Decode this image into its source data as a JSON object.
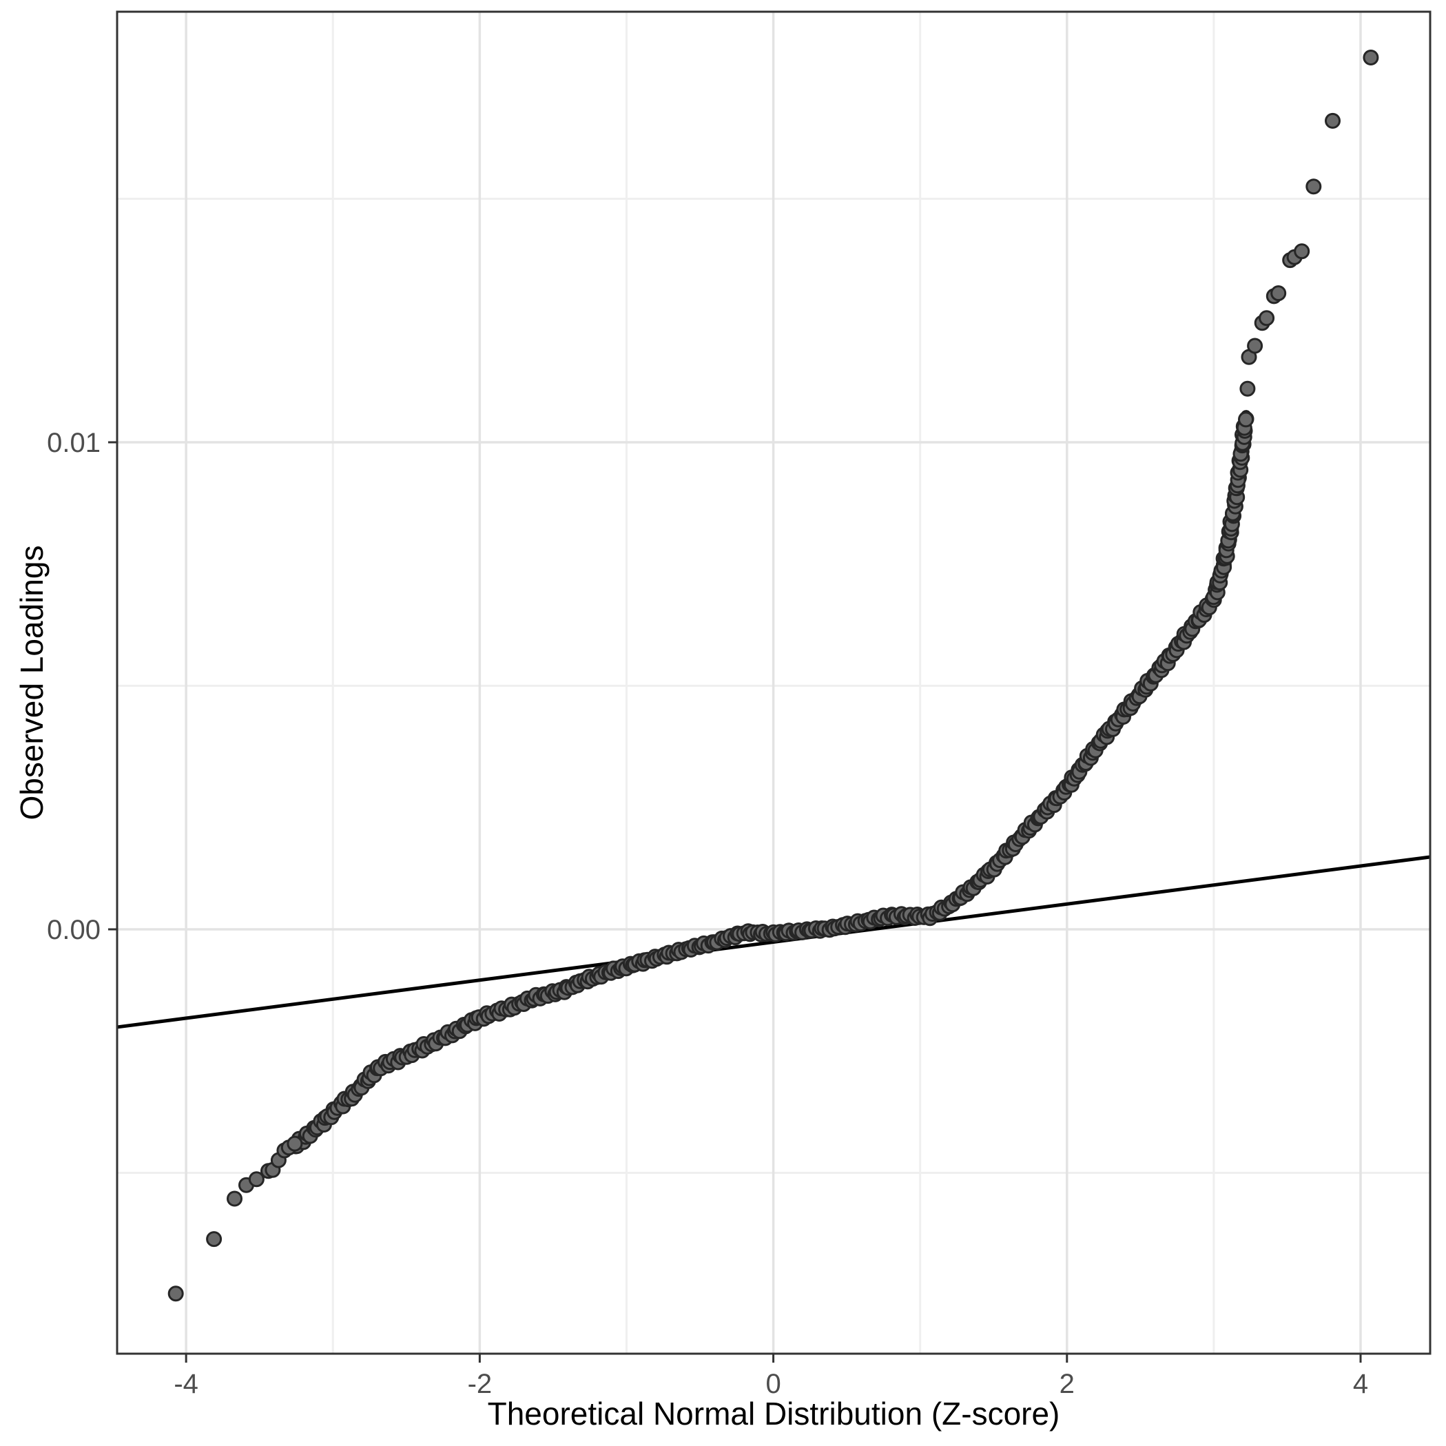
{
  "figure": {
    "background": "#ffffff"
  },
  "chart_data": {
    "type": "scatter",
    "title": "",
    "xlabel": "Theoretical Normal Distribution (Z-score)",
    "ylabel": "Observed Loadings",
    "x_tick_values": [
      -4,
      -2,
      0,
      2,
      4
    ],
    "x_tick_labels": [
      "-4",
      "-2",
      "0",
      "2",
      "4"
    ],
    "y_tick_values": [
      0,
      0.01
    ],
    "y_tick_labels": [
      "0.00",
      "0.01"
    ],
    "x_minor_values": [
      -3,
      -1,
      1,
      3
    ],
    "y_minor_values": [
      -0.005,
      0.005,
      0.015
    ],
    "xlim": [
      -4.47,
      4.474
    ],
    "ylim": [
      -0.008713,
      0.01884
    ],
    "grid": true,
    "legend": "none",
    "reference_line": {
      "x1": -4.47,
      "y1": -0.002008,
      "x2": 4.474,
      "y2": 0.001485
    },
    "qq_curve": [
      [
        -3.26,
        -0.0044
      ],
      [
        -3.1,
        -0.00405
      ],
      [
        -2.95,
        -0.00363
      ],
      [
        -2.86,
        -0.0034
      ],
      [
        -2.69,
        -0.00287
      ],
      [
        -2.5,
        -0.00258
      ],
      [
        -2.25,
        -0.0022
      ],
      [
        -2.0,
        -0.00185
      ],
      [
        -1.8,
        -0.00162
      ],
      [
        -1.61,
        -0.00139
      ],
      [
        -1.45,
        -0.00122
      ],
      [
        -1.29,
        -0.00105
      ],
      [
        -1.0,
        -0.00078
      ],
      [
        -0.81,
        -0.00058
      ],
      [
        -0.6,
        -0.0004
      ],
      [
        -0.4,
        -0.00025
      ],
      [
        -0.2,
        -0.00013
      ],
      [
        0.0,
        -6e-05
      ],
      [
        0.2,
        -1e-05
      ],
      [
        0.4,
        3e-05
      ],
      [
        0.6,
        0.00013
      ],
      [
        0.8,
        0.00024
      ],
      [
        1.07,
        0.00032
      ],
      [
        1.21,
        0.00051
      ],
      [
        1.35,
        0.00082
      ],
      [
        1.5,
        0.00126
      ],
      [
        1.75,
        0.00208
      ],
      [
        2.0,
        0.00296
      ],
      [
        2.25,
        0.0039
      ],
      [
        2.5,
        0.00484
      ],
      [
        2.75,
        0.0058
      ],
      [
        3.0,
        0.0068
      ],
      [
        3.08,
        0.0076
      ],
      [
        3.14,
        0.0086
      ],
      [
        3.18,
        0.0095
      ],
      [
        3.22,
        0.0105
      ]
    ],
    "lower_tail_points": [
      [
        -4.07,
        -0.00748
      ],
      [
        -3.81,
        -0.00636
      ],
      [
        -3.67,
        -0.00553
      ],
      [
        -3.59,
        -0.00525
      ],
      [
        -3.52,
        -0.00513
      ],
      [
        -3.44,
        -0.00496
      ],
      [
        -3.41,
        -0.00494
      ],
      [
        -3.37,
        -0.00474
      ],
      [
        -3.33,
        -0.00454
      ],
      [
        -3.3,
        -0.00448
      ],
      [
        -3.26,
        -0.0044
      ]
    ],
    "upper_tail_points": [
      [
        3.23,
        0.0111
      ],
      [
        3.24,
        0.01175
      ],
      [
        3.28,
        0.01198
      ],
      [
        3.33,
        0.01245
      ],
      [
        3.36,
        0.01255
      ],
      [
        3.41,
        0.013
      ],
      [
        3.44,
        0.01306
      ],
      [
        3.52,
        0.01374
      ],
      [
        3.55,
        0.0138
      ],
      [
        3.6,
        0.01392
      ],
      [
        3.68,
        0.01525
      ],
      [
        3.81,
        0.0166
      ],
      [
        4.07,
        0.0179
      ]
    ],
    "styles": {
      "point_fill": "#6a6a6a",
      "point_stroke": "#262626",
      "band_core": "#0d0d0d",
      "line_color": "#000000",
      "grid_major": "#e3e3e3",
      "grid_minor": "#efefef",
      "panel_border": "#333333",
      "tick_color": "#333333",
      "tick_label_color": "#4d4d4d",
      "title_color": "#000000"
    }
  }
}
